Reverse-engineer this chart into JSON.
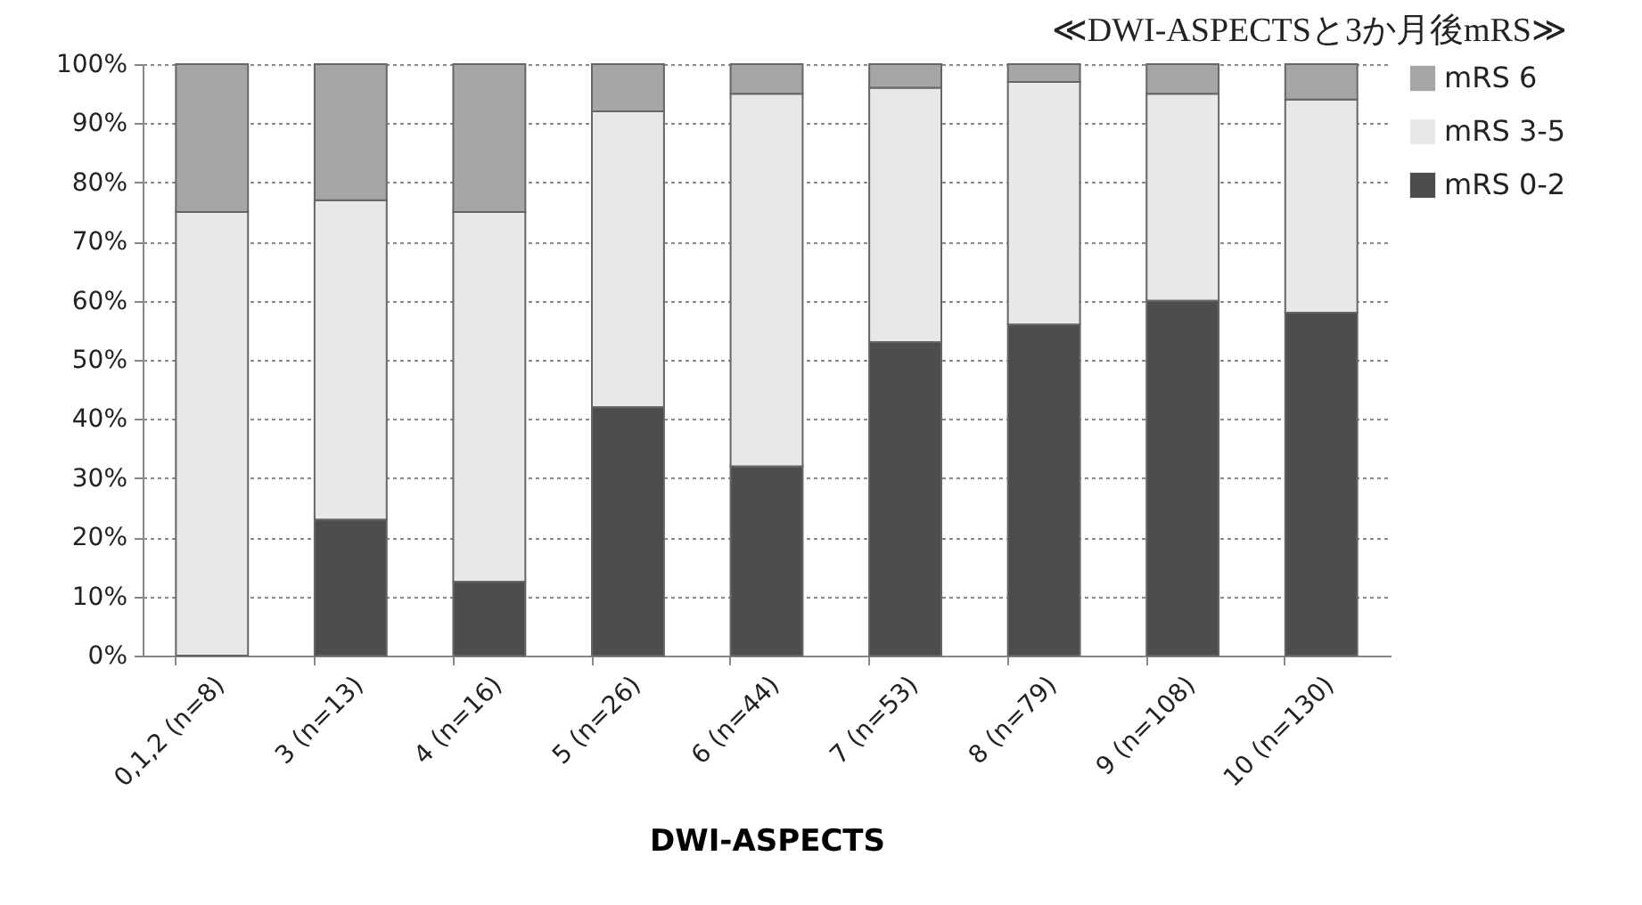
{
  "chart_data": {
    "type": "bar",
    "stacked": true,
    "title": "≪DWI-ASPECTSと3か月後mRS≫",
    "xlabel": "DWI-ASPECTS",
    "categories": [
      "0,1,2 (n=8)",
      "3 (n=13)",
      "4 (n=16)",
      "5 (n=26)",
      "6 (n=44)",
      "7 (n=53)",
      "8 (n=79)",
      "9 (n=108)",
      "10 (n=130)"
    ],
    "series": [
      {
        "name": "mRS 0-2",
        "color": "#4d4d4d",
        "values": [
          0,
          23,
          12.5,
          42,
          32,
          53,
          56,
          60,
          58
        ]
      },
      {
        "name": "mRS 3-5",
        "color": "#e8e8e8",
        "values": [
          75,
          54,
          62.5,
          50,
          63,
          43,
          41,
          35,
          36
        ]
      },
      {
        "name": "mRS 6",
        "color": "#a6a6a6",
        "values": [
          25,
          23,
          25,
          8,
          5,
          4,
          3,
          5,
          6
        ]
      }
    ],
    "ylim": [
      0,
      100
    ],
    "yticks": [
      {
        "value": 0,
        "label": "0%"
      },
      {
        "value": 10,
        "label": "10%"
      },
      {
        "value": 20,
        "label": "20%"
      },
      {
        "value": 30,
        "label": "30%"
      },
      {
        "value": 40,
        "label": "40%"
      },
      {
        "value": 50,
        "label": "50%"
      },
      {
        "value": 60,
        "label": "60%"
      },
      {
        "value": 70,
        "label": "70%"
      },
      {
        "value": 80,
        "label": "80%"
      },
      {
        "value": 90,
        "label": "90%"
      },
      {
        "value": 100,
        "label": "100%"
      }
    ],
    "grid": "y",
    "legend": "right"
  }
}
